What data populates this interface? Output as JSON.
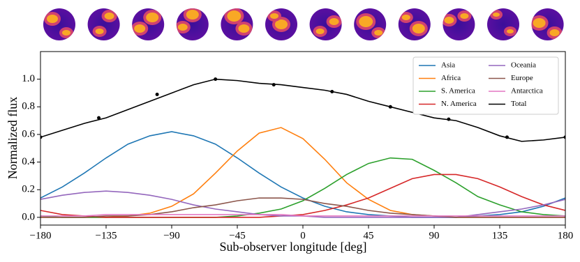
{
  "chart_data": {
    "type": "line",
    "xlabel": "Sub-observer longitude [deg]",
    "ylabel": "Normalized flux",
    "x": [
      -180,
      -165,
      -150,
      -135,
      -120,
      -105,
      -90,
      -75,
      -60,
      -45,
      -30,
      -15,
      0,
      15,
      30,
      45,
      60,
      75,
      90,
      105,
      120,
      135,
      150,
      165,
      180
    ],
    "series": [
      {
        "name": "Asia",
        "color": "#1f77b4",
        "values": [
          0.14,
          0.22,
          0.32,
          0.43,
          0.53,
          0.59,
          0.62,
          0.59,
          0.53,
          0.43,
          0.32,
          0.22,
          0.14,
          0.08,
          0.04,
          0.02,
          0.01,
          0,
          0,
          0,
          0.01,
          0.02,
          0.04,
          0.08,
          0.14
        ]
      },
      {
        "name": "Africa",
        "color": "#ff7f0e",
        "values": [
          0,
          0,
          0,
          0,
          0.01,
          0.03,
          0.08,
          0.17,
          0.32,
          0.48,
          0.61,
          0.65,
          0.57,
          0.42,
          0.25,
          0.13,
          0.05,
          0.02,
          0.01,
          0,
          0,
          0,
          0,
          0,
          0
        ]
      },
      {
        "name": "S. America",
        "color": "#2ca02c",
        "values": [
          0.01,
          0,
          0,
          0,
          0,
          0,
          0,
          0,
          0,
          0.01,
          0.03,
          0.06,
          0.12,
          0.21,
          0.31,
          0.39,
          0.43,
          0.42,
          0.34,
          0.25,
          0.15,
          0.09,
          0.04,
          0.02,
          0.01
        ]
      },
      {
        "name": "N. America",
        "color": "#d62728",
        "values": [
          0.05,
          0.02,
          0.01,
          0,
          0,
          0,
          0,
          0,
          0,
          0,
          0,
          0.01,
          0.02,
          0.05,
          0.09,
          0.14,
          0.21,
          0.28,
          0.31,
          0.31,
          0.28,
          0.22,
          0.15,
          0.09,
          0.05
        ]
      },
      {
        "name": "Oceania",
        "color": "#9467bd",
        "values": [
          0.13,
          0.16,
          0.18,
          0.19,
          0.18,
          0.16,
          0.13,
          0.09,
          0.06,
          0.04,
          0.02,
          0.01,
          0.01,
          0,
          0,
          0,
          0,
          0,
          0,
          0,
          0.02,
          0.04,
          0.06,
          0.09,
          0.13
        ]
      },
      {
        "name": "Europe",
        "color": "#8c564b",
        "values": [
          0,
          0,
          0,
          0.01,
          0.01,
          0.02,
          0.04,
          0.07,
          0.09,
          0.12,
          0.14,
          0.14,
          0.13,
          0.1,
          0.08,
          0.05,
          0.03,
          0.02,
          0.01,
          0,
          0,
          0,
          0,
          0,
          0
        ]
      },
      {
        "name": "Antarctica",
        "color": "#e377c2",
        "values": [
          0.01,
          0.01,
          0.01,
          0.02,
          0.02,
          0.02,
          0.02,
          0.02,
          0.02,
          0.02,
          0.02,
          0.02,
          0.01,
          0.01,
          0.01,
          0.01,
          0.01,
          0.01,
          0.01,
          0.01,
          0.01,
          0.01,
          0.01,
          0.01,
          0.01
        ]
      },
      {
        "name": "Total",
        "color": "#000000",
        "values": [
          0.58,
          0.63,
          0.68,
          0.72,
          0.78,
          0.84,
          0.9,
          0.96,
          1.0,
          0.99,
          0.97,
          0.96,
          0.94,
          0.92,
          0.89,
          0.84,
          0.8,
          0.76,
          0.72,
          0.7,
          0.65,
          0.59,
          0.55,
          0.56,
          0.58
        ],
        "markers": {
          "x": [
            -180,
            -140,
            -100,
            -60,
            -20,
            20,
            60,
            100,
            140,
            180
          ],
          "values": [
            0.58,
            0.72,
            0.89,
            1.0,
            0.96,
            0.91,
            0.8,
            0.71,
            0.58,
            0.58
          ]
        }
      }
    ],
    "xlim": [
      -180,
      180
    ],
    "ylim": [
      -0.056,
      1.2
    ],
    "xticks": [
      {
        "value": -180,
        "label": "−180"
      },
      {
        "value": -135,
        "label": "−135"
      },
      {
        "value": -90,
        "label": "−90"
      },
      {
        "value": -45,
        "label": "−45"
      },
      0,
      45,
      90,
      135,
      180
    ],
    "yticks": [
      {
        "value": 0,
        "label": "0.0"
      },
      {
        "value": 0.2,
        "label": "0.2"
      },
      {
        "value": 0.4,
        "label": "0.4"
      },
      {
        "value": 0.6,
        "label": "0.6"
      },
      {
        "value": 0.8,
        "label": "0.8"
      },
      {
        "value": 1.0,
        "label": "1.0"
      }
    ],
    "legend": "upper right",
    "legend_columns": 2
  }
}
